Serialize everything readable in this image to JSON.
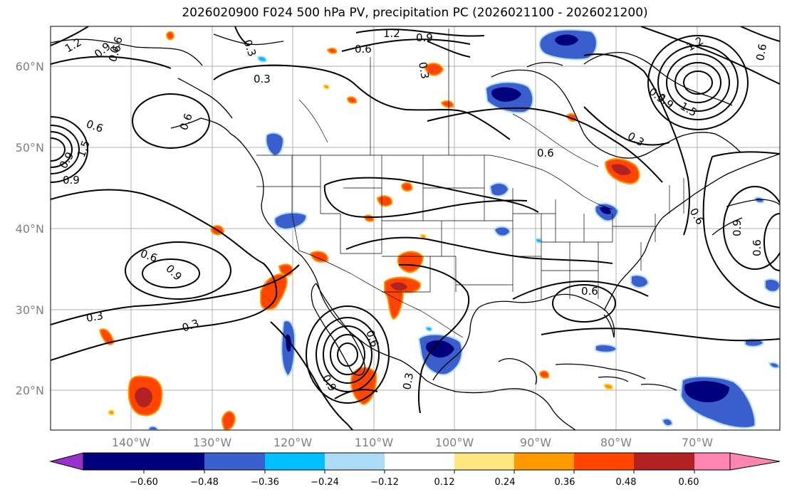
{
  "title": "2026020900 F024 500 hPa PV, precipitation PC (2026021100 - 2026021200)",
  "map": {
    "lat_ticks": [
      "60°N",
      "50°N",
      "40°N",
      "30°N",
      "20°N"
    ],
    "lon_ticks": [
      "140°W",
      "130°W",
      "120°W",
      "110°W",
      "100°W",
      "90°W",
      "80°W",
      "70°W"
    ],
    "contour_labels": [
      "1.2",
      "0.9",
      "0.6",
      "0.3",
      "1.2",
      "0.9",
      "0.6",
      "0.3",
      "0.6",
      "0.9",
      "1.5",
      "0.6",
      "0.9",
      "0.6",
      "0.9",
      "0.6",
      "0.3",
      "0.3",
      "0.3",
      "0.9",
      "0.6",
      "0.6",
      "0.3",
      "0.6",
      "0.9",
      "0.6",
      "0.6",
      "0.9",
      "1.2",
      "1.5",
      "0.9",
      "0.6",
      "0.3"
    ],
    "colors": {
      "coast": "#000000",
      "contour": "#000000",
      "grid": "#b0b0b0"
    }
  },
  "colorbar": {
    "ticks": [
      "−0.60",
      "−0.48",
      "−0.36",
      "−0.24",
      "−0.12",
      "0.12",
      "0.24",
      "0.36",
      "0.48",
      "0.60"
    ],
    "colors": [
      "#9932cc",
      "#00007f",
      "#3a5fcd",
      "#00bfff",
      "#aedcf6",
      "#ffffff",
      "#ffe680",
      "#ff9900",
      "#ff4500",
      "#b22222",
      "#ff85b0"
    ]
  }
}
